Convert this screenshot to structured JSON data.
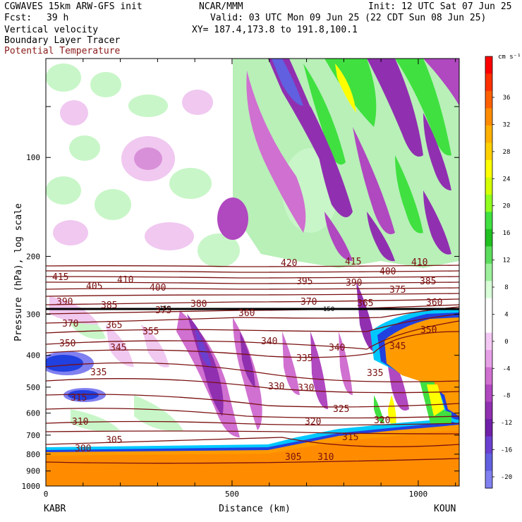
{
  "header": {
    "model": "CGWAVES 15km ARW-GFS init",
    "org": "NCAR/MMM",
    "init": "Init: 12 UTC Sat 07 Jun 25",
    "fcst_label": "Fcst:",
    "fcst_value": "39 h",
    "valid": "Valid: 03 UTC Mon 09 Jun 25 (22 CDT Sun 08 Jun 25)",
    "xy": "XY= 187.4,173.8 to 191.8,100.1",
    "fields": [
      "Vertical velocity",
      "Boundary Layer Tracer",
      "Potential Temperature"
    ],
    "field_colors": [
      "#000000",
      "#000000",
      "#8b1a1a"
    ]
  },
  "chart_data": {
    "type": "heatmap",
    "title": "Vertical velocity",
    "xlabel": "Distance (km)",
    "ylabel": "Pressure (hPa), log scale",
    "xlim": [
      0,
      1110
    ],
    "ylim": [
      1000,
      50
    ],
    "y_scale": "log",
    "x_ticks": [
      0,
      500,
      1000
    ],
    "y_ticks": [
      100,
      200,
      300,
      400,
      500,
      600,
      700,
      800,
      900,
      1000
    ],
    "endpoints": {
      "left": "KABR",
      "right": "KOUN"
    },
    "colorbar": {
      "units": "cm s⁻¹",
      "labels": [
        "36",
        "32",
        "28",
        "24",
        "20",
        "16",
        "12",
        "8",
        "4",
        "0",
        "-4",
        "-8",
        "-12",
        "-16",
        "-20"
      ],
      "colors": [
        "#ff0000",
        "#ff3000",
        "#ff6000",
        "#ff8c00",
        "#ffb000",
        "#ffd000",
        "#ffff00",
        "#d4ff00",
        "#90ff20",
        "#40e040",
        "#20c020",
        "#5cdc5c",
        "#9cf09c",
        "#d8ffd8",
        "#ffffff",
        "#ffffff",
        "#f4c8f4",
        "#e6a0e6",
        "#d070d0",
        "#b048c0",
        "#9030b0",
        "#7020a8",
        "#6a40d0",
        "#6060e0",
        "#8080f0"
      ]
    },
    "isentropes": {
      "name": "Potential Temperature",
      "color": "#7a1010",
      "contour_values_K": [
        300,
        305,
        310,
        315,
        320,
        325,
        330,
        335,
        340,
        345,
        350,
        355,
        360,
        365,
        370,
        375,
        380,
        385,
        390,
        395,
        400,
        405,
        410,
        415,
        420
      ]
    },
    "marked_level": {
      "value_hPa": 150,
      "label": "150"
    }
  }
}
